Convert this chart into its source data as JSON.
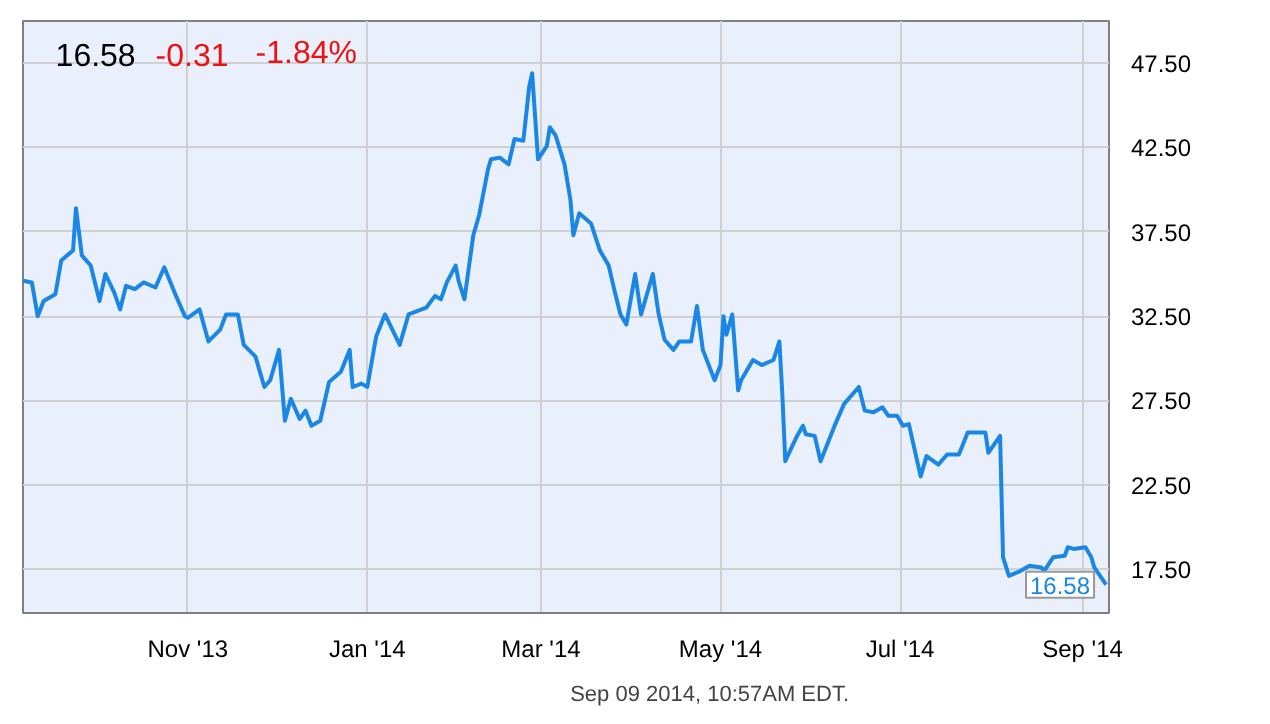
{
  "chart_data": {
    "type": "line",
    "title": "16.58",
    "annotations": [
      "-0.31",
      "-1.84%",
      "Sep 09 2014, 10:57AM EDT.",
      {
        "text": "16.58",
        "x": "2014-09-09",
        "y": 16.58
      }
    ],
    "x": [
      "2013-09-06",
      "2013-09-09",
      "2013-09-11",
      "2013-09-13",
      "2013-09-17",
      "2013-09-19",
      "2013-09-23",
      "2013-09-24",
      "2013-09-26",
      "2013-09-29",
      "2013-10-02",
      "2013-10-04",
      "2013-10-07",
      "2013-10-09",
      "2013-10-11",
      "2013-10-14",
      "2013-10-17",
      "2013-10-21",
      "2013-10-24",
      "2013-10-28",
      "2013-10-31",
      "2013-11-01",
      "2013-11-05",
      "2013-11-08",
      "2013-11-12",
      "2013-11-14",
      "2013-11-18",
      "2013-11-20",
      "2013-11-24",
      "2013-11-27",
      "2013-11-29",
      "2013-12-02",
      "2013-12-04",
      "2013-12-06",
      "2013-12-09",
      "2013-12-11",
      "2013-12-13",
      "2013-12-16",
      "2013-12-19",
      "2013-12-23",
      "2013-12-26",
      "2013-12-27",
      "2013-12-30",
      "2014-01-01",
      "2014-01-04",
      "2014-01-07",
      "2014-01-12",
      "2014-01-15",
      "2014-01-21",
      "2014-01-24",
      "2014-01-26",
      "2014-01-28",
      "2014-01-31",
      "2014-02-01",
      "2014-02-03",
      "2014-02-06",
      "2014-02-08",
      "2014-02-11",
      "2014-02-12",
      "2014-02-15",
      "2014-02-18",
      "2014-02-20",
      "2014-02-23",
      "2014-02-25",
      "2014-02-26",
      "2014-02-28",
      "2014-03-03",
      "2014-03-04",
      "2014-03-06",
      "2014-03-09",
      "2014-03-11",
      "2014-03-12",
      "2014-03-14",
      "2014-03-18",
      "2014-03-21",
      "2014-03-24",
      "2014-03-26",
      "2014-03-28",
      "2014-03-30",
      "2014-04-02",
      "2014-04-04",
      "2014-04-08",
      "2014-04-10",
      "2014-04-12",
      "2014-04-15",
      "2014-04-17",
      "2014-04-21",
      "2014-04-23",
      "2014-04-25",
      "2014-04-29",
      "2014-05-01",
      "2014-05-02",
      "2014-05-03",
      "2014-05-05",
      "2014-05-07",
      "2014-05-08",
      "2014-05-12",
      "2014-05-15",
      "2014-05-19",
      "2014-05-21",
      "2014-05-22",
      "2014-05-23",
      "2014-05-27",
      "2014-05-29",
      "2014-05-30",
      "2014-06-02",
      "2014-06-04",
      "2014-06-09",
      "2014-06-12",
      "2014-06-17",
      "2014-06-19",
      "2014-06-22",
      "2014-06-25",
      "2014-06-27",
      "2014-06-30",
      "2014-07-02",
      "2014-07-04",
      "2014-07-08",
      "2014-07-10",
      "2014-07-14",
      "2014-07-17",
      "2014-07-21",
      "2014-07-24",
      "2014-07-28",
      "2014-07-30",
      "2014-07-31",
      "2014-08-04",
      "2014-08-05",
      "2014-08-07",
      "2014-08-11",
      "2014-08-14",
      "2014-08-18",
      "2014-08-19",
      "2014-08-22",
      "2014-08-26",
      "2014-08-27",
      "2014-08-29",
      "2014-09-02",
      "2014-09-04",
      "2014-09-05",
      "2014-09-09"
    ],
    "series": [
      {
        "color": "#1a87e6",
        "values": [
          34.6,
          34.5,
          32.5,
          33.4,
          33.8,
          35.8,
          36.4,
          38.9,
          36.1,
          35.5,
          33.4,
          35.0,
          33.9,
          32.9,
          34.3,
          34.1,
          34.5,
          34.2,
          35.4,
          33.7,
          32.5,
          32.4,
          32.9,
          31.0,
          31.7,
          32.6,
          32.6,
          30.8,
          30.1,
          28.3,
          28.7,
          30.5,
          26.3,
          27.6,
          26.4,
          26.9,
          26.0,
          26.3,
          28.6,
          29.2,
          30.5,
          28.3,
          28.5,
          28.3,
          31.3,
          32.6,
          30.8,
          32.6,
          33.0,
          33.7,
          33.5,
          34.5,
          35.5,
          34.6,
          33.5,
          37.3,
          38.5,
          41.2,
          41.8,
          41.9,
          41.5,
          43.0,
          42.9,
          46.1,
          46.9,
          41.8,
          42.6,
          43.7,
          43.2,
          41.5,
          39.4,
          37.3,
          38.6,
          38.0,
          36.4,
          35.5,
          34.0,
          32.6,
          32.0,
          35.0,
          32.6,
          35.0,
          32.6,
          31.1,
          30.5,
          31.0,
          31.0,
          33.1,
          30.5,
          28.7,
          29.6,
          32.5,
          31.4,
          32.6,
          28.1,
          28.7,
          29.9,
          29.6,
          29.9,
          31.0,
          27.9,
          23.9,
          25.4,
          26.0,
          25.5,
          25.4,
          23.9,
          26.1,
          27.3,
          28.3,
          26.9,
          26.8,
          27.1,
          26.6,
          26.6,
          26.0,
          26.1,
          23.0,
          24.2,
          23.7,
          24.3,
          24.3,
          25.6,
          25.6,
          25.6,
          24.4,
          25.4,
          18.2,
          17.1,
          17.4,
          17.7,
          17.6,
          17.4,
          18.2,
          18.3,
          18.8,
          18.7,
          18.8,
          18.2,
          17.6,
          16.58
        ]
      }
    ],
    "xlim": [
      "2013-09-06",
      "2014-09-10"
    ],
    "xticks": [
      {
        "value": "2013-11-01",
        "label": "Nov '13"
      },
      {
        "value": "2014-01-01",
        "label": "Jan '14"
      },
      {
        "value": "2014-03-01",
        "label": "Mar '14"
      },
      {
        "value": "2014-05-01",
        "label": "May '14"
      },
      {
        "value": "2014-07-01",
        "label": "Jul '14"
      },
      {
        "value": "2014-09-01",
        "label": "Sep '14"
      }
    ],
    "ylim": [
      14.9,
      50
    ],
    "yticks": [
      {
        "value": 17.5,
        "label": "17.50"
      },
      {
        "value": 22.5,
        "label": "22.50"
      },
      {
        "value": 27.5,
        "label": "27.50"
      },
      {
        "value": 32.5,
        "label": "32.50"
      },
      {
        "value": 37.5,
        "label": "37.50"
      },
      {
        "value": 42.5,
        "label": "42.50"
      },
      {
        "value": 47.5,
        "label": "47.50"
      }
    ],
    "grid": true,
    "marker": "none",
    "line_style": "solid"
  }
}
